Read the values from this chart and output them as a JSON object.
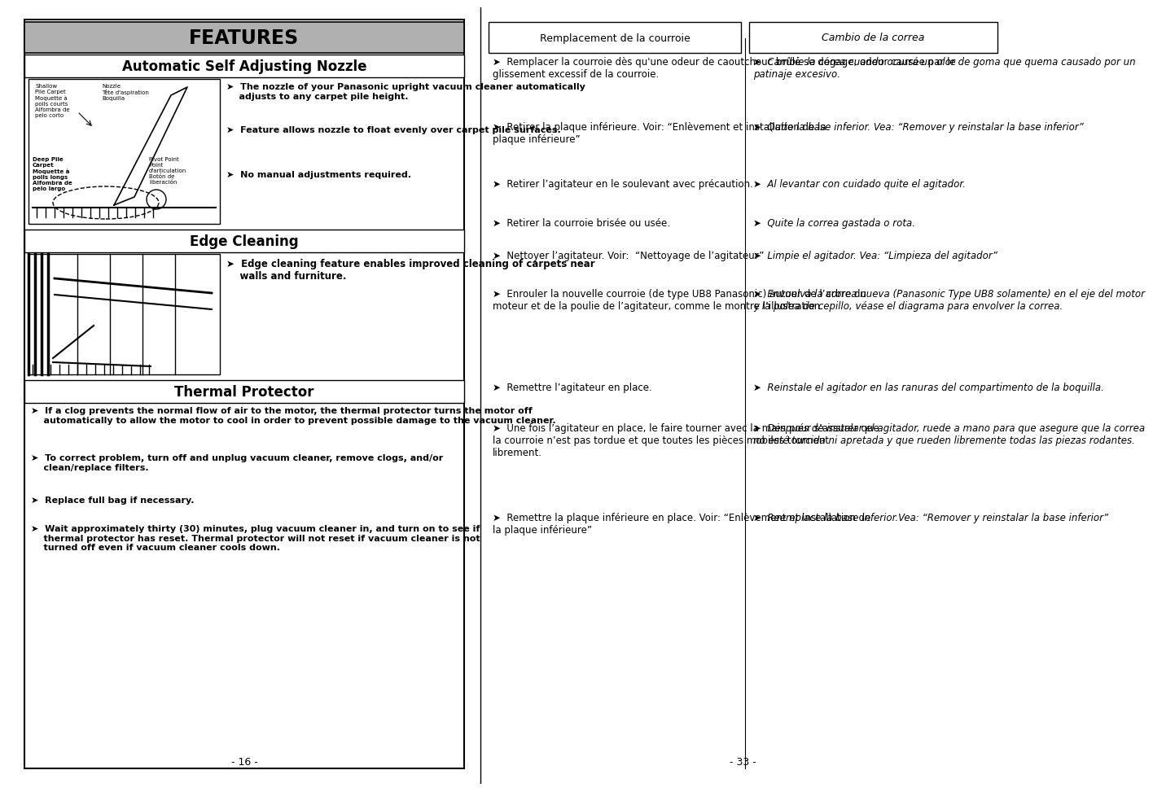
{
  "bg_color": "#ffffff",
  "left_panel": {
    "features_header": "FEATURES",
    "asn_header": "Automatic Self Adjusting Nozzle",
    "ec_header": "Edge Cleaning",
    "tp_header": "Thermal Protector",
    "nozzle_bullets": [
      "➤  The nozzle of your Panasonic upright vacuum cleaner automatically\n    adjusts to any carpet pile height.",
      "➤  Feature allows nozzle to float evenly over carpet pile surfaces.",
      "➤  No manual adjustments required."
    ],
    "ec_bullet": "➤  Edge cleaning feature enables improved cleaning of carpets near\n    walls and furniture.",
    "tp_bullets": [
      "➤  If a clog prevents the normal flow of air to the motor, the thermal protector turns the motor off\n    automatically to allow the motor to cool in order to prevent possible damage to the vacuum cleaner.",
      "➤  To correct problem, turn off and unplug vacuum cleaner, remove clogs, and/or\n    clean/replace filters.",
      "➤  Replace full bag if necessary.",
      "➤  Wait approximately thirty (30) minutes, plug vacuum cleaner in, and turn on to see if\n    thermal protector has reset. Thermal protector will not reset if vacuum cleaner is not\n    turned off even if vacuum cleaner cools down."
    ],
    "page_number": "- 16 -"
  },
  "right_panel": {
    "header_fr": "Remplacement de la courroie",
    "header_es": "Cambio de la correa",
    "french_bullets": [
      "Remplacer la courroie dès qu'une odeur de caoutchouc brûlé se dégage, odeur causée par le\nglissement excessif de la courroie.",
      "Retirer la plaque inférieure. Voir: “Enlèvement et installation de la\nplaque inférieure”",
      "Retirer l’agitateur en le soulevant avec précaution.",
      "Retirer la courroie brisée ou usée.",
      "Nettoyer l’agitateur. Voir:  “Nettoyage de l’agitateur”",
      "Enrouler la nouvelle courroie (de type UB8 Panasonic) autour de l’arbre du\nmoteur et de la poulie de l’agitateur, comme le montre l’illustration.",
      "Remettre l’agitateur en place.",
      "Une fois l’agitateur en place, le faire tourner avec la main pour s’assurer que\nla courroie n’est pas tordue et que toutes les pièces mobiles tournent\nlibrement.",
      "Remettre la plaque inférieure en place. Voir: “Enlèvement et installation de\nla plaque inférieure”"
    ],
    "spanish_bullets": [
      "Cambie la corea cuando ocurra un olor de goma que quema causado por un\npatinaje excesivo.",
      "Quite la base inferior. Vea: “Remover y reinstalar la base inferior”",
      "Al levantar con cuidado quite el agitador.",
      "Quite la correa gastada o rota.",
      "Limpie el agitador. Vea: “Limpieza del agitador”",
      "Envuelva la correa nueva (Panasonic Type UB8 solamente) en el eje del motor\ny la polea de cepillo, véase el diagrama para envolver la correa.",
      "Reinstale el agitador en las ranuras del compartimento de la boquilla.",
      "Después de instalar el agitador, ruede a mano para que asegure que la correa\nno esté torcida ni apretada y que rueden libremente todas las piezas rodantes.",
      "Reemplace la base inferior.Vea: “Remover y reinstalar la base inferior”"
    ],
    "page_number": "- 33 -"
  }
}
